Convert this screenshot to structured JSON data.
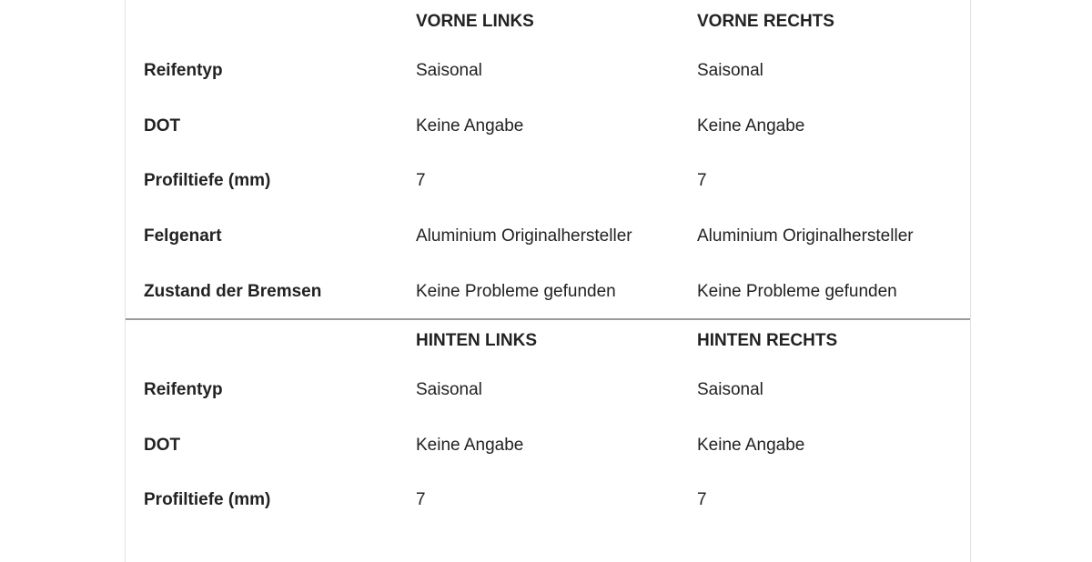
{
  "front": {
    "headers": [
      "",
      "VORNE LINKS",
      "VORNE RECHTS"
    ],
    "rows": [
      [
        "Reifentyp",
        "Saisonal",
        "Saisonal"
      ],
      [
        "DOT",
        "Keine Angabe",
        "Keine Angabe"
      ],
      [
        "Profiltiefe (mm)",
        "7",
        "7"
      ],
      [
        "Felgenart",
        "Aluminium Originalhersteller",
        "Aluminium Originalhersteller"
      ],
      [
        "Zustand der Bremsen",
        "Keine Probleme gefunden",
        "Keine Probleme gefunden"
      ]
    ]
  },
  "rear": {
    "headers": [
      "",
      "HINTEN LINKS",
      "HINTEN RECHTS"
    ],
    "rows": [
      [
        "Reifentyp",
        "Saisonal",
        "Saisonal"
      ],
      [
        "DOT",
        "Keine Angabe",
        "Keine Angabe"
      ],
      [
        "Profiltiefe (mm)",
        "7",
        "7"
      ]
    ]
  }
}
